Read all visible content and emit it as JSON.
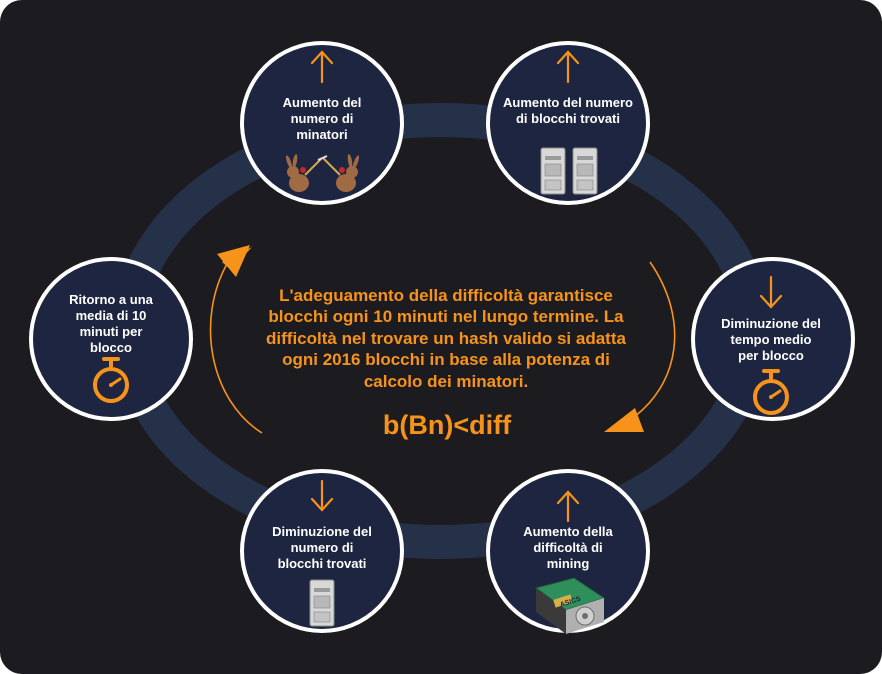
{
  "colors": {
    "background": "#1c1c20",
    "ring": "#253049",
    "node_fill": "#1e2540",
    "node_border": "#ffffff",
    "accent": "#f7931a",
    "text": "#ffffff"
  },
  "center": {
    "lines": [
      "L'adeguamento della difficoltà garantisce",
      "blocchi ogni 10 minuti nel lungo termine. La",
      "difficoltà nel trovare un hash valido si adatta",
      "ogni 2016 blocchi in base alla potenza di",
      "calcolo dei minatori."
    ],
    "formula": "b(Bn)<diff"
  },
  "nodes": [
    {
      "id": "miners-up",
      "arrow": "up",
      "lines": [
        "Aumento del",
        "numero di",
        "minatori"
      ],
      "icon": "miners-pickaxe-icon"
    },
    {
      "id": "blocks-up",
      "arrow": "up",
      "lines": [
        "Aumento del numero",
        "di blocchi trovati"
      ],
      "icon": "two-servers-icon"
    },
    {
      "id": "time-down",
      "arrow": "down",
      "lines": [
        "Diminuzione del",
        "tempo medio",
        "per blocco"
      ],
      "icon": "stopwatch-icon"
    },
    {
      "id": "difficulty-up",
      "arrow": "up",
      "lines": [
        "Aumento della",
        "difficoltà di",
        "mining"
      ],
      "icon": "asic-miner-icon",
      "icon_text": "ASICS"
    },
    {
      "id": "blocks-down",
      "arrow": "down",
      "lines": [
        "Diminuzione del",
        "numero di",
        "blocchi trovati"
      ],
      "icon": "server-icon"
    },
    {
      "id": "return-ten",
      "arrow": "none",
      "lines": [
        "Ritorno a una",
        "media di 10",
        "minuti per",
        "blocco"
      ],
      "icon": "stopwatch-icon"
    }
  ]
}
